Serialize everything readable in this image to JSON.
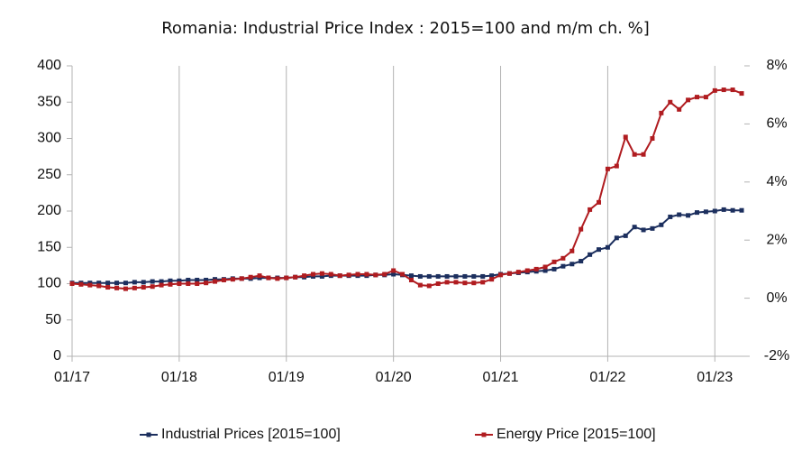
{
  "chart_data": {
    "type": "line",
    "title": "Romania: Industrial Price Index : 2015=100 and m/m ch. %]",
    "categories": [
      "01/17",
      null,
      null,
      null,
      null,
      null,
      null,
      null,
      null,
      null,
      null,
      null,
      "01/18",
      null,
      null,
      null,
      null,
      null,
      null,
      null,
      null,
      null,
      null,
      null,
      "01/19",
      null,
      null,
      null,
      null,
      null,
      null,
      null,
      null,
      null,
      null,
      null,
      "01/20",
      null,
      null,
      null,
      null,
      null,
      null,
      null,
      null,
      null,
      null,
      null,
      "01/21",
      null,
      null,
      null,
      null,
      null,
      null,
      null,
      null,
      null,
      null,
      null,
      "01/22",
      null,
      null,
      null,
      null,
      null,
      null,
      null,
      null,
      null,
      null,
      null,
      "01/23",
      null,
      null,
      null
    ],
    "series": [
      {
        "name": "Industrial Prices [2015=100]",
        "color": "#1c2f5e",
        "values": [
          101,
          101,
          101,
          101,
          101,
          101,
          101,
          102,
          102,
          103,
          103,
          104,
          104,
          105,
          105,
          105,
          106,
          106,
          107,
          107,
          107,
          108,
          108,
          108,
          108,
          109,
          109,
          110,
          110,
          111,
          111,
          111,
          111,
          111,
          112,
          112,
          113,
          112,
          111,
          110,
          110,
          110,
          110,
          110,
          110,
          110,
          110,
          111,
          113,
          114,
          115,
          116,
          117,
          118,
          120,
          124,
          127,
          131,
          140,
          147,
          150,
          163,
          166,
          178,
          174,
          176,
          181,
          192,
          195,
          194,
          198,
          199,
          200,
          202,
          201,
          201
        ]
      },
      {
        "name": "Energy Price [2015=100]",
        "color": "#b01c20",
        "values": [
          100,
          99,
          98,
          97,
          95,
          94,
          93,
          94,
          95,
          96,
          98,
          99,
          100,
          100,
          100,
          101,
          103,
          105,
          106,
          107,
          109,
          111,
          108,
          107,
          108,
          109,
          111,
          113,
          114,
          113,
          111,
          112,
          113,
          113,
          112,
          113,
          118,
          113,
          105,
          98,
          97,
          100,
          102,
          102,
          101,
          101,
          102,
          106,
          112,
          114,
          116,
          118,
          120,
          123,
          130,
          135,
          145,
          175,
          202,
          212,
          258,
          262,
          302,
          278,
          278,
          300,
          335,
          350,
          340,
          353,
          357,
          357,
          366,
          367,
          367,
          362
        ]
      }
    ],
    "ylim": [
      0,
      400
    ],
    "yticks": [
      0,
      50,
      100,
      150,
      200,
      250,
      300,
      350,
      400
    ],
    "y2lim": [
      -2,
      8
    ],
    "y2ticks": [
      {
        "value": -2,
        "label": "-2%"
      },
      {
        "value": 0,
        "label": "0%"
      },
      {
        "value": 2,
        "label": "2%"
      },
      {
        "value": 4,
        "label": "4%"
      },
      {
        "value": 6,
        "label": "6%"
      },
      {
        "value": 8,
        "label": "8%"
      }
    ],
    "grid": "x",
    "legend": "bottom"
  }
}
